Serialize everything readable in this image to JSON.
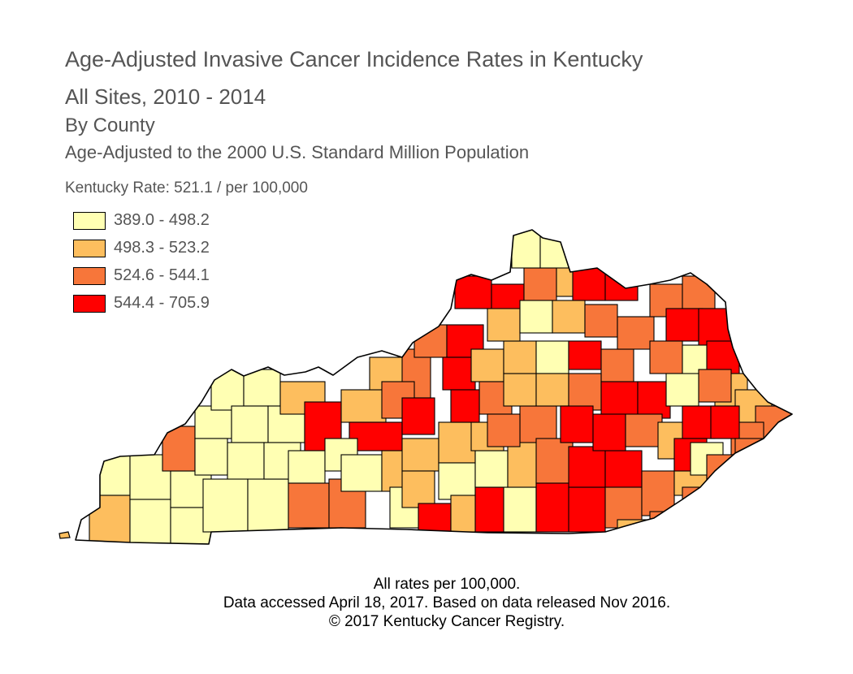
{
  "title": "Age-Adjusted Invasive Cancer Incidence Rates in Kentucky",
  "subtitle_1": "All Sites, 2010 - 2014",
  "subtitle_2": "By County",
  "subtitle_3": "Age-Adjusted to the 2000 U.S. Standard Million Population",
  "state_rate": "Kentucky Rate: 521.1 / per 100,000",
  "legend": [
    {
      "label": "389.0 - 498.2",
      "color": "#ffffb3"
    },
    {
      "label": "498.3 - 523.2",
      "color": "#fdbe5e"
    },
    {
      "label": "524.6 - 544.1",
      "color": "#f7763a"
    },
    {
      "label": "544.4 - 705.9",
      "color": "#ff0000"
    }
  ],
  "footer": [
    "All rates per 100,000.",
    "Data accessed April 18, 2017. Based on data released Nov 2016.",
    "© 2017 Kentucky Cancer Registry."
  ]
}
